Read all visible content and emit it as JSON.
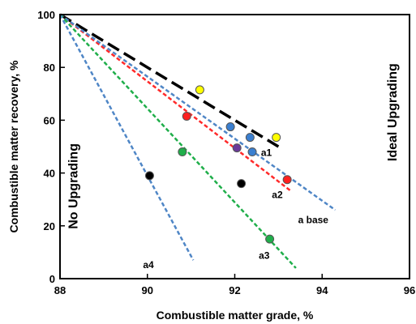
{
  "chart_data": {
    "type": "scatter",
    "xlabel": "Combustible matter grade, %",
    "ylabel": "Combustible matter recovery, %",
    "xlim": [
      88,
      96
    ],
    "ylim": [
      0,
      100
    ],
    "xticks": [
      "88",
      "90",
      "92",
      "94",
      "96"
    ],
    "yticks": [
      "0",
      "20",
      "40",
      "60",
      "80",
      "100"
    ],
    "grid": false,
    "lines": [
      {
        "label": "a1",
        "color": "#000000",
        "style": "long-dash",
        "x": [
          88,
          93.0
        ],
        "y": [
          100,
          50
        ]
      },
      {
        "label": "a2",
        "color": "#ff2a2a",
        "style": "dash",
        "x": [
          88,
          93.3
        ],
        "y": [
          100,
          33
        ]
      },
      {
        "label": "a base",
        "color": "#4f86c6",
        "style": "dash",
        "x": [
          88,
          94.3
        ],
        "y": [
          100,
          26
        ]
      },
      {
        "label": "a3",
        "color": "#1fae4a",
        "style": "dash",
        "x": [
          88,
          93.4
        ],
        "y": [
          100,
          4
        ]
      },
      {
        "label": "a4",
        "color": "#4f86c6",
        "style": "dash",
        "x": [
          88,
          91.05
        ],
        "y": [
          100,
          7
        ]
      }
    ],
    "points": [
      {
        "x": 91.2,
        "y": 71.5,
        "color": "#ffff00"
      },
      {
        "x": 92.95,
        "y": 53.5,
        "color": "#ffff00"
      },
      {
        "x": 90.9,
        "y": 61.5,
        "color": "#ff2020"
      },
      {
        "x": 93.2,
        "y": 37.5,
        "color": "#ff2020"
      },
      {
        "x": 91.9,
        "y": 57.5,
        "color": "#3a7fd0"
      },
      {
        "x": 92.35,
        "y": 53.5,
        "color": "#3a7fd0"
      },
      {
        "x": 92.4,
        "y": 48,
        "color": "#3a7fd0"
      },
      {
        "x": 92.05,
        "y": 49.5,
        "color": "#6a3a9a"
      },
      {
        "x": 90.8,
        "y": 48,
        "color": "#1fae4a"
      },
      {
        "x": 92.8,
        "y": 15,
        "color": "#1fae4a"
      },
      {
        "x": 90.05,
        "y": 39,
        "color": "#000000"
      },
      {
        "x": 92.15,
        "y": 36,
        "color": "#000000"
      }
    ],
    "annotations": [
      {
        "text": "a1",
        "x": 92.6,
        "y": 46.5
      },
      {
        "text": "a2",
        "x": 92.85,
        "y": 30.5
      },
      {
        "text": "a base",
        "x": 93.45,
        "y": 21
      },
      {
        "text": "a3",
        "x": 92.55,
        "y": 7.5
      },
      {
        "text": "a4",
        "x": 89.9,
        "y": 4
      },
      {
        "text": "No Upgrading",
        "x": 88.4,
        "y": 35,
        "rotate": -90,
        "big": true
      },
      {
        "text": "Ideal Upgrading",
        "x": 95.7,
        "y": 63,
        "rotate": -90,
        "big": true
      }
    ]
  }
}
